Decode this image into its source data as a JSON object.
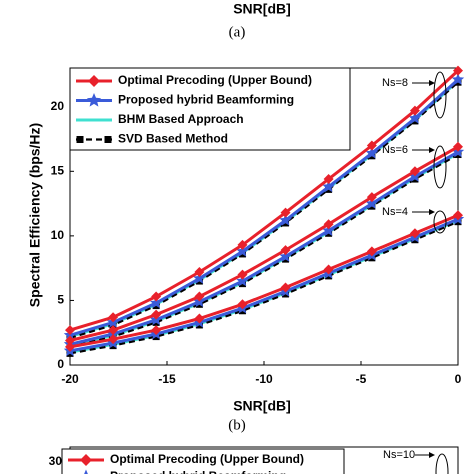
{
  "figure_a": {
    "xlabel": "SNR[dB]",
    "caption": "(a)"
  },
  "chart_data": [
    {
      "type": "line",
      "caption": "(b)",
      "xlabel": "SNR[dB]",
      "ylabel": "Spectral Efficiency (bps/Hz)",
      "x": [
        -20,
        -17.78,
        -15.56,
        -13.33,
        -11.11,
        -8.89,
        -6.67,
        -4.44,
        -2.22,
        0
      ],
      "xlim": [
        -20,
        0
      ],
      "xticks": [
        -20,
        -15,
        -10,
        -5,
        0
      ],
      "ylim": [
        0,
        23
      ],
      "yticks": [
        0,
        5,
        10,
        15,
        20
      ],
      "legend": "upper left",
      "annotations": [
        "Ns=8",
        "Ns=6",
        "Ns=4"
      ],
      "series": [
        {
          "name": "Optimal Precoding (Upper Bound)",
          "color": "#e8212b",
          "marker": "diamond",
          "dash": "solid",
          "groups": [
            [
              2.7,
              3.7,
              5.3,
              7.2,
              9.3,
              11.8,
              14.4,
              17.0,
              19.7,
              22.8
            ],
            [
              1.9,
              2.7,
              3.9,
              5.3,
              7.0,
              8.9,
              10.9,
              13.0,
              15.0,
              16.9
            ],
            [
              1.4,
              2.0,
              2.7,
              3.6,
              4.7,
              6.0,
              7.4,
              8.8,
              10.2,
              11.6
            ]
          ]
        },
        {
          "name": "Proposed hybrid Beamforming",
          "color": "#3a5bd9",
          "marker": "star",
          "dash": "solid",
          "groups": [
            [
              2.3,
              3.3,
              4.8,
              6.7,
              8.8,
              11.2,
              13.8,
              16.4,
              19.1,
              22.1
            ],
            [
              1.6,
              2.4,
              3.5,
              4.9,
              6.5,
              8.4,
              10.4,
              12.5,
              14.6,
              16.5
            ],
            [
              1.1,
              1.7,
              2.4,
              3.3,
              4.4,
              5.7,
              7.1,
              8.5,
              9.9,
              11.3
            ]
          ]
        },
        {
          "name": "BHM Based Approach",
          "color": "#3fe0d0",
          "marker": "none",
          "dash": "solid",
          "groups": [
            [
              2.2,
              3.2,
              4.7,
              6.6,
              8.7,
              11.1,
              13.7,
              16.3,
              19.0,
              22.0
            ],
            [
              1.5,
              2.3,
              3.4,
              4.8,
              6.4,
              8.3,
              10.3,
              12.4,
              14.5,
              16.4
            ],
            [
              1.0,
              1.6,
              2.3,
              3.2,
              4.3,
              5.6,
              7.0,
              8.4,
              9.8,
              11.2
            ]
          ]
        },
        {
          "name": "SVD Based Method",
          "color": "#000000",
          "marker": "square",
          "dash": "dashed",
          "groups": [
            [
              2.1,
              3.1,
              4.6,
              6.5,
              8.6,
              11.0,
              13.6,
              16.2,
              18.9,
              21.9
            ],
            [
              1.4,
              2.2,
              3.3,
              4.7,
              6.3,
              8.2,
              10.2,
              12.3,
              14.4,
              16.3
            ],
            [
              0.9,
              1.5,
              2.2,
              3.1,
              4.2,
              5.5,
              6.9,
              8.3,
              9.7,
              11.1
            ]
          ]
        }
      ]
    },
    {
      "type": "line",
      "yticks": [
        30
      ],
      "annotations": [
        "Ns=10"
      ],
      "series": [
        {
          "name": "Optimal Precoding (Upper Bound)",
          "color": "#e8212b",
          "marker": "diamond"
        },
        {
          "name": "Proposed hybrid Beamforming",
          "color": "#3a5bd9",
          "marker": "star"
        }
      ]
    }
  ]
}
